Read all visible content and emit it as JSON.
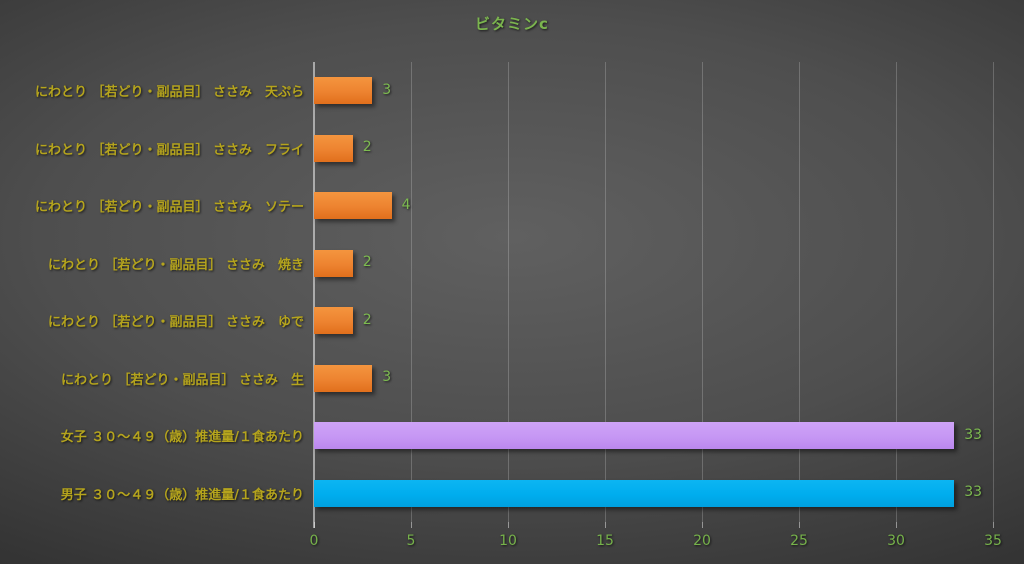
{
  "title": "ビタミンc",
  "colors": {
    "title_text": "#7bb54e",
    "tick_label_text": "#76b24a",
    "value_label_text": "#7dbb50",
    "category_label_text": "#b5a41d",
    "bar_orange": "#ed7d31",
    "bar_purple": "#c697f4",
    "bar_blue": "#00adee",
    "background_center": "#5e5e5e",
    "background_edge": "#232323",
    "gridline": "#7a7a7a"
  },
  "chart_data": {
    "type": "bar",
    "orientation": "horizontal",
    "title": "ビタミンc",
    "categories": [
      "にわとり ［若どり・副品目］ ささみ　天ぷら",
      "にわとり ［若どり・副品目］ ささみ　フライ",
      "にわとり ［若どり・副品目］ ささみ　ソテー",
      "にわとり ［若どり・副品目］ ささみ　焼き",
      "にわとり ［若どり・副品目］ ささみ　ゆで",
      "にわとり ［若どり・副品目］ ささみ　生",
      "女子 ３０～４９（歳）推進量/１食あたり",
      "男子 ３０～４９（歳）推進量/１食あたり"
    ],
    "values": [
      3,
      2,
      4,
      2,
      2,
      3,
      33,
      33
    ],
    "value_labels": [
      "3",
      "2",
      "4",
      "2",
      "2",
      "3",
      "33",
      "33"
    ],
    "bar_color_names": [
      "orange",
      "orange",
      "orange",
      "orange",
      "orange",
      "orange",
      "purple",
      "blue"
    ],
    "xlabel": "",
    "ylabel": "",
    "xlim": [
      0,
      35
    ],
    "xticks": [
      0,
      5,
      10,
      15,
      20,
      25,
      30,
      35
    ],
    "grid": "vertical-gridlines-on",
    "legend": "none",
    "data_labels_position": "outside-end"
  }
}
